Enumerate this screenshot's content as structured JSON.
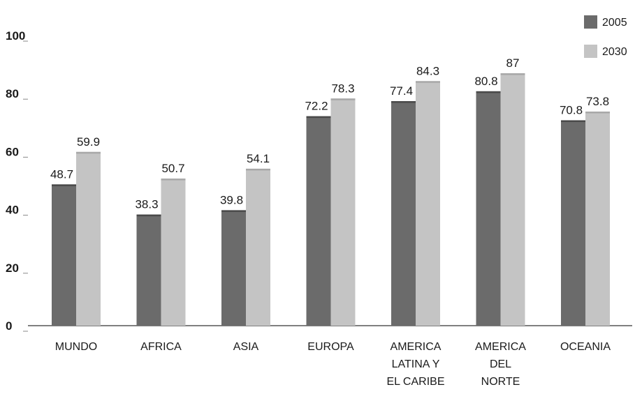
{
  "chart_data": {
    "type": "bar",
    "categories": [
      [
        "MUNDO"
      ],
      [
        "AFRICA"
      ],
      [
        "ASIA"
      ],
      [
        "EUROPA"
      ],
      [
        "AMERICA",
        "LATINA Y",
        "EL CARIBE"
      ],
      [
        "AMERICA",
        "DEL",
        "NORTE"
      ],
      [
        "OCEANIA"
      ]
    ],
    "series": [
      {
        "name": "2005",
        "values": [
          48.7,
          38.3,
          39.8,
          72.2,
          77.4,
          80.8,
          70.8
        ],
        "labels": [
          "48.7",
          "38.3",
          "39.8",
          "72.2",
          "77.4",
          "80.8",
          "70.8"
        ],
        "color": "#6b6b6b"
      },
      {
        "name": "2030",
        "values": [
          59.9,
          50.7,
          54.1,
          78.3,
          84.3,
          87,
          73.8
        ],
        "labels": [
          "59.9",
          "50.7",
          "54.1",
          "78.3",
          "84.3",
          "87",
          "73.8"
        ],
        "color": "#c4c4c4"
      }
    ],
    "yticks": [
      "0",
      "20",
      "40",
      "60",
      "80",
      "100"
    ],
    "ylim": [
      0,
      100
    ],
    "grid": false,
    "legend_position": "top-right"
  }
}
